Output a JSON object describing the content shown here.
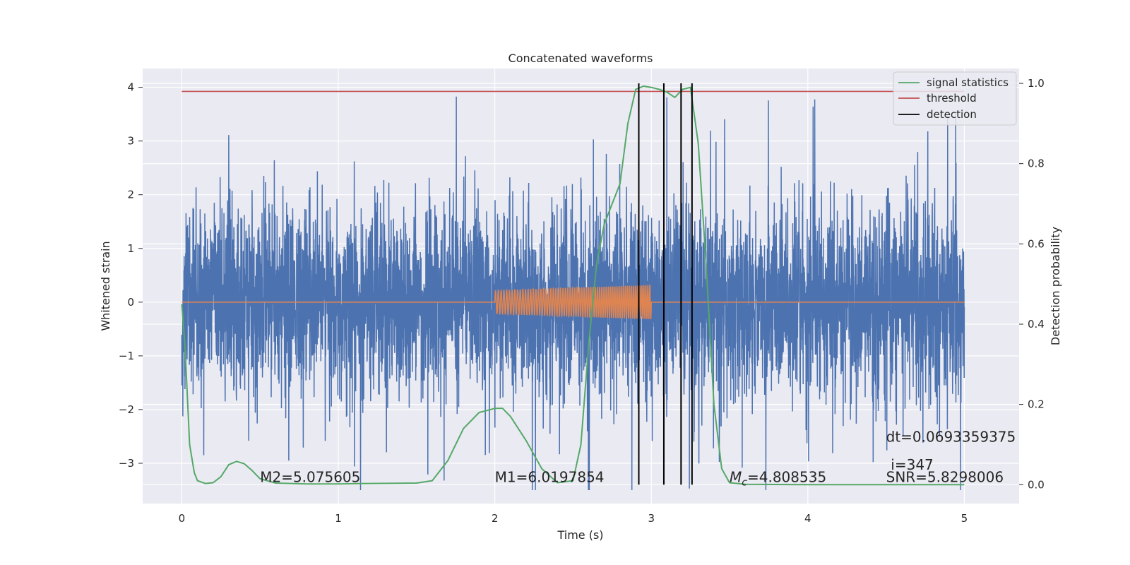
{
  "chart_data": {
    "type": "line",
    "title": "Concatenated waveforms",
    "xlabel": "Time (s)",
    "ylabel": "Whitened strain",
    "y2label": "Detection probability",
    "xlim": [
      -0.25,
      5.35
    ],
    "ylim": [
      -3.75,
      4.35
    ],
    "y2lim": [
      -0.047,
      1.037
    ],
    "xticks": [
      0,
      1,
      2,
      3,
      4,
      5
    ],
    "xtick_labels": [
      "0",
      "1",
      "2",
      "3",
      "4",
      "5"
    ],
    "yticks": [
      4,
      3,
      2,
      1,
      0,
      -1,
      -2,
      -3
    ],
    "ytick_labels": [
      "4",
      "3",
      "2",
      "1",
      "0",
      "−1",
      "−2",
      "−3"
    ],
    "y2ticks": [
      1.0,
      0.8,
      0.6,
      0.4,
      0.2,
      0.0
    ],
    "y2tick_labels": [
      "1.0",
      "0.8",
      "0.6",
      "0.4",
      "0.2",
      "0.0"
    ],
    "grid": true,
    "legend_position": "top-right",
    "colors": {
      "background": "#eaeaf2",
      "grid": "#ffffff",
      "strain": "#4c72b0",
      "template": "#dd8452",
      "signal_statistics": "#55a868",
      "threshold": "#c44e52",
      "detection": "#000000"
    },
    "series": [
      {
        "name": "whitened strain",
        "axis": "left",
        "x_range": [
          0,
          5
        ],
        "noise_sigma": 0.85,
        "spike_range": [
          -3.5,
          4.0
        ]
      },
      {
        "name": "injected waveform",
        "axis": "left",
        "x_range": [
          2,
          3
        ],
        "amplitude_start": 0.22,
        "amplitude_end": 0.32,
        "zero_elsewhere": true
      },
      {
        "name": "signal statistics",
        "axis": "right",
        "x": [
          0,
          0.02,
          0.05,
          0.08,
          0.1,
          0.15,
          0.2,
          0.25,
          0.3,
          0.35,
          0.4,
          0.45,
          0.5,
          0.6,
          0.8,
          1.0,
          1.2,
          1.5,
          1.6,
          1.7,
          1.8,
          1.9,
          2.0,
          2.05,
          2.1,
          2.2,
          2.3,
          2.4,
          2.5,
          2.55,
          2.6,
          2.65,
          2.7,
          2.8,
          2.85,
          2.9,
          2.95,
          3.0,
          3.05,
          3.1,
          3.15,
          3.2,
          3.25,
          3.3,
          3.35,
          3.4,
          3.45,
          3.5,
          3.6,
          4.0,
          5.0
        ],
        "y": [
          0.45,
          0.35,
          0.1,
          0.03,
          0.01,
          0.003,
          0.005,
          0.02,
          0.05,
          0.058,
          0.052,
          0.035,
          0.015,
          0.004,
          0.002,
          0.002,
          0.003,
          0.004,
          0.01,
          0.06,
          0.14,
          0.18,
          0.19,
          0.19,
          0.17,
          0.11,
          0.04,
          0.005,
          0.01,
          0.1,
          0.35,
          0.55,
          0.65,
          0.75,
          0.9,
          0.985,
          0.993,
          0.99,
          0.985,
          0.978,
          0.965,
          0.985,
          0.99,
          0.85,
          0.55,
          0.2,
          0.04,
          0.005,
          0.001,
          0.0,
          0.0
        ]
      },
      {
        "name": "threshold",
        "axis": "right",
        "x": [
          0,
          5
        ],
        "y": [
          0.98,
          0.98
        ]
      },
      {
        "name": "detection",
        "axis": "right",
        "x": [
          2.92,
          3.08,
          3.19,
          3.26
        ],
        "y_range": [
          0.0,
          1.0
        ]
      }
    ],
    "legend": [
      "signal statistics",
      "threshold",
      "detection"
    ],
    "annotations": {
      "m2": {
        "prefix": "M2=",
        "value": "5.075605",
        "x": 0.5,
        "y": -3.35
      },
      "m1": {
        "prefix": "M1=",
        "value": "6.0197854",
        "x": 2.0,
        "y": -3.35
      },
      "mc": {
        "symbol": "M",
        "sub": "c",
        "text": "=4.808535",
        "x": 3.5,
        "y": -3.35
      },
      "dt": {
        "text": "dt=0.0693359375",
        "x": 4.5,
        "y": -2.6
      },
      "index": {
        "text": "i=347",
        "x": 4.53,
        "y": -3.12
      },
      "snr": {
        "text": "SNR=5.8298006",
        "x": 4.5,
        "y": -3.35
      }
    }
  }
}
